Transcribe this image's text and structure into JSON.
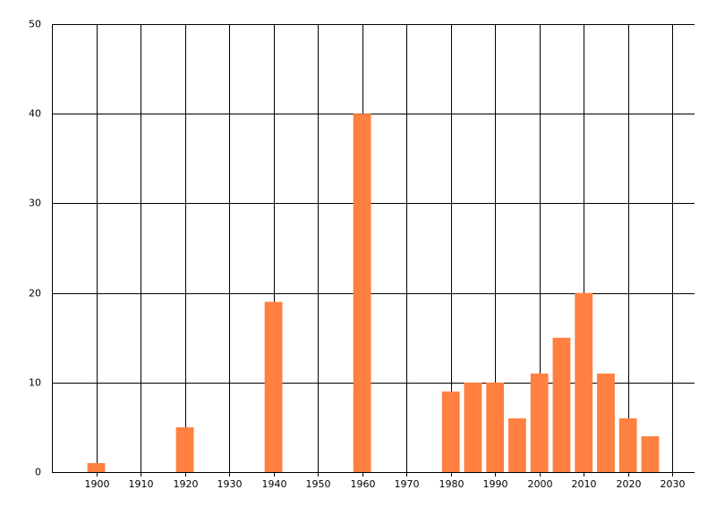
{
  "chart_data": {
    "type": "bar",
    "x": [
      1900,
      1920,
      1940,
      1960,
      1980,
      1985,
      1990,
      1995,
      2000,
      2005,
      2010,
      2015,
      2020,
      2025
    ],
    "values": [
      1,
      5,
      19,
      40,
      9,
      10,
      10,
      6,
      11,
      15,
      20,
      11,
      6,
      4
    ],
    "color": "#ff8040",
    "xlim": [
      1890,
      2035
    ],
    "xticks": [
      1900,
      1910,
      1920,
      1930,
      1940,
      1950,
      1960,
      1970,
      1980,
      1990,
      2000,
      2010,
      2020,
      2030
    ],
    "ylim": [
      0,
      50
    ],
    "yticks": [
      0,
      10,
      20,
      30,
      40,
      50
    ],
    "grid": true
  }
}
